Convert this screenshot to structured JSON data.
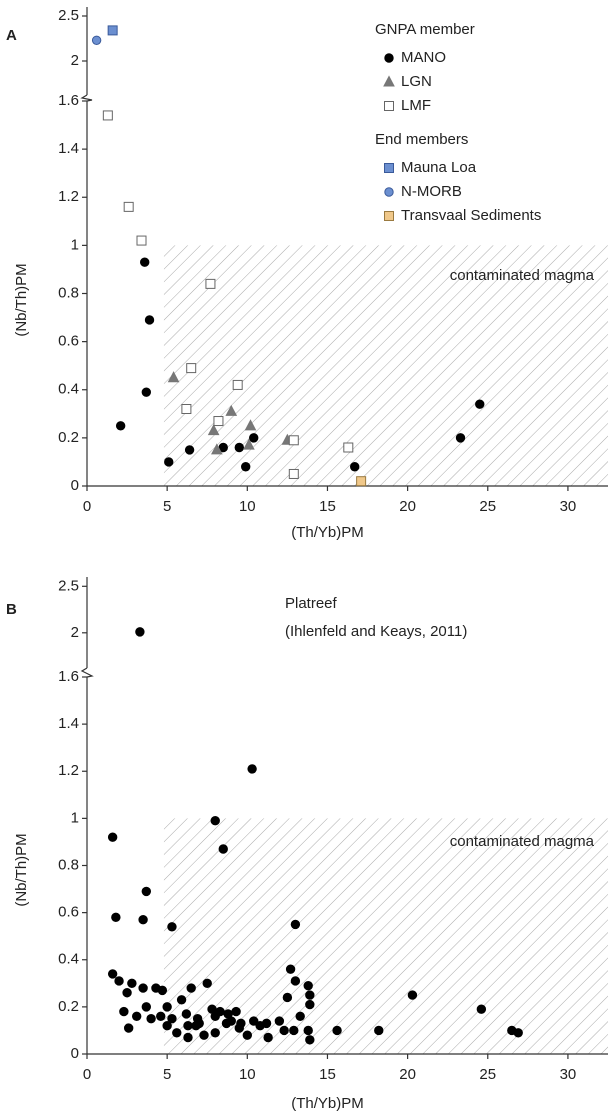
{
  "chart_data": [
    {
      "type": "scatter",
      "panel_label": "A",
      "xlabel": "(Th/Yb)PM",
      "ylabel": "(Nb/Th)PM",
      "xlim": [
        0,
        32.5
      ],
      "xticks": [
        0,
        5,
        10,
        15,
        20,
        25,
        30
      ],
      "ylim": [
        0,
        1.6
      ],
      "yticks": [
        0,
        0.2,
        0.4,
        0.6,
        0.8,
        1,
        1.2,
        1.4,
        1.6
      ],
      "upper_ylim": [
        1.6,
        2.6
      ],
      "upper_yticks": [
        2,
        2.5
      ],
      "shaded_region": {
        "x0": 4.8,
        "y1": 1,
        "label": "contaminated magma"
      },
      "series_groups": [
        {
          "name": "GNPA member",
          "series": [
            {
              "name": "MANO",
              "marker": "circle",
              "color": "#000000",
              "edgecolor": "#000000",
              "x": [
                3.6,
                3.9,
                3.7,
                2.1,
                5.1,
                6.4,
                8.5,
                9.5,
                9.9,
                10.4,
                16.7,
                23.3,
                24.5
              ],
              "y": [
                0.93,
                0.69,
                0.39,
                0.25,
                0.1,
                0.15,
                0.16,
                0.16,
                0.08,
                0.2,
                0.08,
                0.2,
                0.34
              ]
            },
            {
              "name": "LGN",
              "marker": "triangle",
              "color": "#777777",
              "edgecolor": "#777777",
              "x": [
                5.4,
                7.9,
                8.1,
                9.0,
                10.1,
                10.2,
                12.5
              ],
              "y": [
                0.45,
                0.23,
                0.15,
                0.31,
                0.17,
                0.25,
                0.19
              ]
            },
            {
              "name": "LMF",
              "marker": "square",
              "color": "#ffffff",
              "edgecolor": "#666666",
              "x": [
                1.3,
                2.6,
                3.4,
                7.7,
                6.5,
                6.2,
                8.2,
                9.4,
                12.9,
                12.9,
                16.3
              ],
              "y": [
                1.54,
                1.16,
                1.02,
                0.84,
                0.49,
                0.32,
                0.27,
                0.42,
                0.19,
                0.05,
                0.16
              ]
            }
          ]
        },
        {
          "name": "End members",
          "series": [
            {
              "name": "Mauna Loa",
              "marker": "square",
              "color": "#6b8fd0",
              "edgecolor": "#3a5a9a",
              "x": [
                1.6
              ],
              "y": [
                2.34
              ]
            },
            {
              "name": "N-MORB",
              "marker": "circle",
              "color": "#6b8fd0",
              "edgecolor": "#3a5a9a",
              "x": [
                0.6
              ],
              "y": [
                2.23
              ]
            },
            {
              "name": "Transvaal Sediments",
              "marker": "square",
              "color": "#f0c88a",
              "edgecolor": "#9a7a40",
              "x": [
                17.1
              ],
              "y": [
                0.02
              ]
            }
          ]
        }
      ]
    },
    {
      "type": "scatter",
      "panel_label": "B",
      "title": "Platreef",
      "subtitle": "(Ihlenfeld and Keays, 2011)",
      "xlabel": "(Th/Yb)PM",
      "ylabel": "(Nb/Th)PM",
      "xlim": [
        0,
        32.5
      ],
      "xticks": [
        0,
        5,
        10,
        15,
        20,
        25,
        30
      ],
      "ylim": [
        0,
        1.6
      ],
      "yticks": [
        0,
        0.2,
        0.4,
        0.6,
        0.8,
        1,
        1.2,
        1.4,
        1.6
      ],
      "upper_ylim": [
        1.6,
        2.6
      ],
      "upper_yticks": [
        2,
        2.5
      ],
      "shaded_region": {
        "x0": 4.8,
        "y1": 1,
        "label": "contaminated magma"
      },
      "series_groups": [
        {
          "series": [
            {
              "marker": "circle",
              "color": "#000000",
              "edgecolor": "#000000",
              "x": [
                3.3,
                10.3,
                8.0,
                8.5,
                1.6,
                3.7,
                1.8,
                3.5,
                5.3,
                13.0,
                1.6,
                2.0,
                2.8,
                3.5,
                4.3,
                4.7,
                6.5,
                7.5,
                12.7,
                13.8,
                13.0,
                13.9,
                13.9,
                12.5,
                2.5,
                3.7,
                5.0,
                5.9,
                7.8,
                8.3,
                8.8,
                9.3,
                2.3,
                3.1,
                4.0,
                4.6,
                5.3,
                6.2,
                6.9,
                8.0,
                9.0,
                9.6,
                10.4,
                11.2,
                12.0,
                13.3,
                2.6,
                5.0,
                5.6,
                6.3,
                6.8,
                7.3,
                8.0,
                8.7,
                9.5,
                10.0,
                10.8,
                11.3,
                12.3,
                12.9,
                13.8,
                13.9,
                6.3,
                7.0,
                15.6,
                18.2,
                20.3,
                24.6,
                26.5,
                26.9
              ],
              "y": [
                2.01,
                1.21,
                0.99,
                0.87,
                0.92,
                0.69,
                0.58,
                0.57,
                0.54,
                0.55,
                0.34,
                0.31,
                0.3,
                0.28,
                0.28,
                0.27,
                0.28,
                0.3,
                0.36,
                0.29,
                0.31,
                0.25,
                0.21,
                0.24,
                0.26,
                0.2,
                0.2,
                0.23,
                0.19,
                0.18,
                0.17,
                0.18,
                0.18,
                0.16,
                0.15,
                0.16,
                0.15,
                0.17,
                0.15,
                0.16,
                0.14,
                0.13,
                0.14,
                0.13,
                0.14,
                0.16,
                0.11,
                0.12,
                0.09,
                0.12,
                0.12,
                0.08,
                0.09,
                0.13,
                0.11,
                0.08,
                0.12,
                0.07,
                0.1,
                0.1,
                0.1,
                0.06,
                0.07,
                0.13,
                0.1,
                0.1,
                0.25,
                0.19,
                0.1,
                0.09
              ]
            }
          ]
        }
      ]
    }
  ]
}
